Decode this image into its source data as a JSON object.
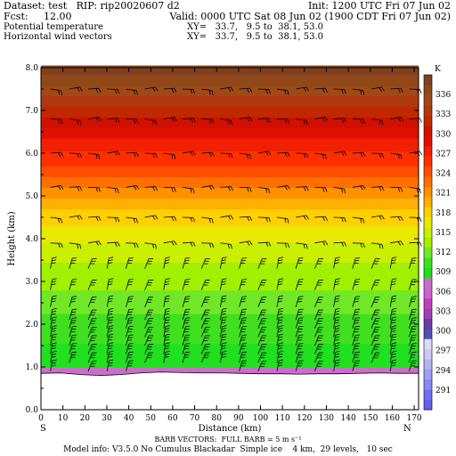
{
  "header": {
    "dataset": "Dataset: test   RIP: rip20020607 d2",
    "init": "Init: 1200 UTC Fri 07 Jun 02",
    "fcst": "Fcst:     12.00",
    "valid": "Valid: 0000 UTC Sat 08 Jun 02 (1900 CDT Fri 07 Jun 02)",
    "field1": "Potential temperature",
    "field2": "Horizontal wind vectors",
    "xy1": "XY=   33.7,   9.5 to  38.1, 53.0",
    "xy2": "XY=   33.7,   9.5 to  38.1, 53.0"
  },
  "footer": {
    "barb_note": "BARB VECTORS:  FULL BARB = 5 m s⁻¹",
    "model_info": "Model info: V3.5.0 No Cumulus Blackadar  Simple ice    4 km,  29 levels,   10 sec"
  },
  "colors": {
    "ground": "#ffffff",
    "barb": "#000000",
    "ramp": [
      "#6060e8",
      "#7070f0",
      "#8888f0",
      "#9e9ef4",
      "#b4b4f4",
      "#cacaf6",
      "#dcdcf8",
      "#5050b8",
      "#6a3ca8",
      "#a040b8",
      "#c040c0",
      "#d060d0",
      "#c870c8",
      "#20e020",
      "#40e020",
      "#70e828",
      "#a0f000",
      "#c8f000",
      "#e8e800",
      "#ffd000",
      "#ffb000",
      "#ff9000",
      "#ff7000",
      "#ff5000",
      "#ff3000",
      "#f02000",
      "#e01000",
      "#d01000",
      "#c02800",
      "#b03810",
      "#a04818",
      "#904818",
      "#804020"
    ]
  },
  "chart_data": {
    "type": "heatmap",
    "title": "Potential temperature",
    "subtitle": "Horizontal wind vectors",
    "xlabel": "Distance (km)",
    "ylabel": "Height (km)",
    "xlim": [
      0,
      172
    ],
    "ylim": [
      0,
      8
    ],
    "x_ticks": [
      0,
      10,
      20,
      30,
      40,
      50,
      60,
      70,
      80,
      90,
      100,
      110,
      120,
      130,
      140,
      150,
      160,
      170
    ],
    "y_ticks": [
      0,
      1,
      2,
      3,
      4,
      5,
      6,
      7,
      8
    ],
    "y_tick_labels": [
      "0.0",
      "1.0",
      "2.0",
      "3.0",
      "4.0",
      "5.0",
      "6.0",
      "7.0",
      "8.0"
    ],
    "x_endpoint_labels": [
      "S",
      "N"
    ],
    "colorbar_unit": "K",
    "colorbar_labels": [
      291,
      294,
      297,
      300,
      303,
      306,
      309,
      312,
      315,
      318,
      321,
      324,
      327,
      330,
      333,
      336
    ],
    "colorbar_min": 288,
    "colorbar_max": 339,
    "terrain_height_km": [
      0.85,
      0.86,
      0.82,
      0.8,
      0.82,
      0.86,
      0.88,
      0.87,
      0.86,
      0.86,
      0.85,
      0.84,
      0.84,
      0.83,
      0.84,
      0.84,
      0.85,
      0.86,
      0.85,
      0.85
    ],
    "theta_profile": {
      "height_km": [
        0.8,
        1.5,
        2.2,
        2.7,
        3.2,
        3.7,
        4.2,
        4.7,
        5.2,
        5.7,
        6.3,
        6.9,
        7.5,
        8.0
      ],
      "theta_K": [
        307.5,
        309.5,
        311.0,
        312.5,
        313.5,
        315.0,
        317.0,
        319.0,
        322.0,
        325.0,
        328.0,
        331.5,
        335.5,
        338.5
      ]
    },
    "grid": false,
    "barb_levels_km": [
      0.9,
      1.1,
      1.3,
      1.5,
      1.7,
      1.9,
      2.1,
      2.4,
      2.8,
      3.3,
      3.9,
      4.5,
      5.2,
      6.0,
      6.8,
      7.5
    ],
    "barb_columns": 20
  }
}
